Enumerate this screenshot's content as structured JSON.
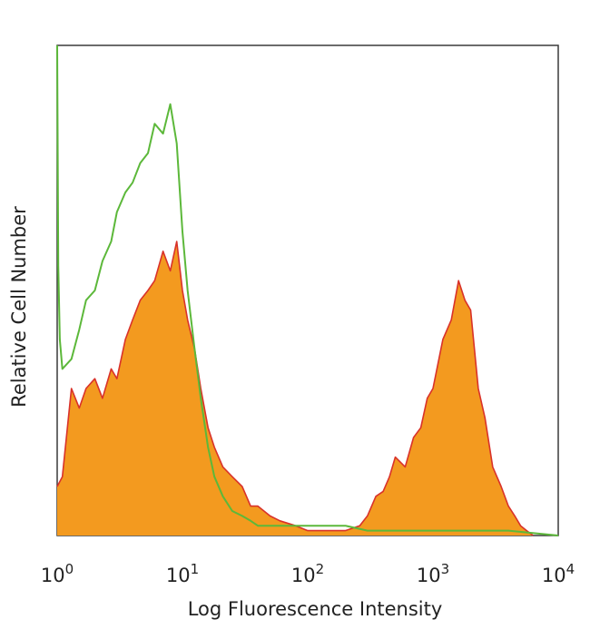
{
  "chart_data": {
    "type": "area",
    "title": "",
    "xlabel": "Log Fluorescence Intensity",
    "ylabel": "Relative Cell Number",
    "x_scale": "log",
    "xlim": [
      1,
      10000
    ],
    "ylim": [
      0,
      100
    ],
    "grid": false,
    "legend": "none",
    "x_ticks": [
      {
        "base": "10",
        "exp": "0",
        "value": 1
      },
      {
        "base": "10",
        "exp": "1",
        "value": 10
      },
      {
        "base": "10",
        "exp": "2",
        "value": 100
      },
      {
        "base": "10",
        "exp": "3",
        "value": 1000
      },
      {
        "base": "10",
        "exp": "4",
        "value": 10000
      }
    ],
    "series": [
      {
        "style": "filled",
        "color": "#f39a1f",
        "edge_color": "#d9322a",
        "x": [
          1.0,
          1.1,
          1.3,
          1.5,
          1.7,
          2.0,
          2.3,
          2.7,
          3.0,
          3.5,
          4.0,
          4.6,
          5.3,
          6.0,
          7.0,
          8.0,
          9.0,
          10.0,
          11.0,
          12.5,
          14,
          16,
          18,
          21,
          25,
          30,
          35,
          40,
          50,
          60,
          80,
          100,
          150,
          200,
          260,
          300,
          350,
          400,
          450,
          500,
          600,
          700,
          800,
          900,
          1000,
          1200,
          1400,
          1600,
          1800,
          2000,
          2300,
          2600,
          3000,
          3500,
          4000,
          4500,
          5000,
          5600,
          6300
        ],
        "values": [
          10,
          12,
          30,
          26,
          30,
          32,
          28,
          34,
          32,
          40,
          44,
          48,
          50,
          52,
          58,
          54,
          60,
          50,
          44,
          38,
          30,
          22,
          18,
          14,
          12,
          10,
          6,
          6,
          4,
          3,
          2,
          1,
          1,
          1,
          2,
          4,
          8,
          9,
          12,
          16,
          14,
          20,
          22,
          28,
          30,
          40,
          44,
          52,
          48,
          46,
          30,
          24,
          14,
          10,
          6,
          4,
          2,
          1,
          0
        ]
      },
      {
        "style": "line",
        "color": "#5cb83a",
        "x": [
          1.0,
          1.02,
          1.05,
          1.1,
          1.3,
          1.5,
          1.7,
          2.0,
          2.3,
          2.7,
          3.0,
          3.5,
          4.0,
          4.6,
          5.3,
          6.0,
          7.0,
          8.0,
          9.0,
          10.0,
          11.0,
          12.5,
          14,
          16,
          18,
          21,
          25,
          30,
          35,
          40,
          50,
          60,
          80,
          100,
          150,
          200,
          300,
          500,
          1000,
          2000,
          4000,
          10000
        ],
        "values": [
          100,
          55,
          40,
          34,
          36,
          42,
          48,
          50,
          56,
          60,
          66,
          70,
          72,
          76,
          78,
          84,
          82,
          88,
          80,
          62,
          50,
          38,
          28,
          18,
          12,
          8,
          5,
          4,
          3,
          2,
          2,
          2,
          2,
          2,
          2,
          2,
          1,
          1,
          1,
          1,
          1,
          0
        ]
      }
    ]
  }
}
